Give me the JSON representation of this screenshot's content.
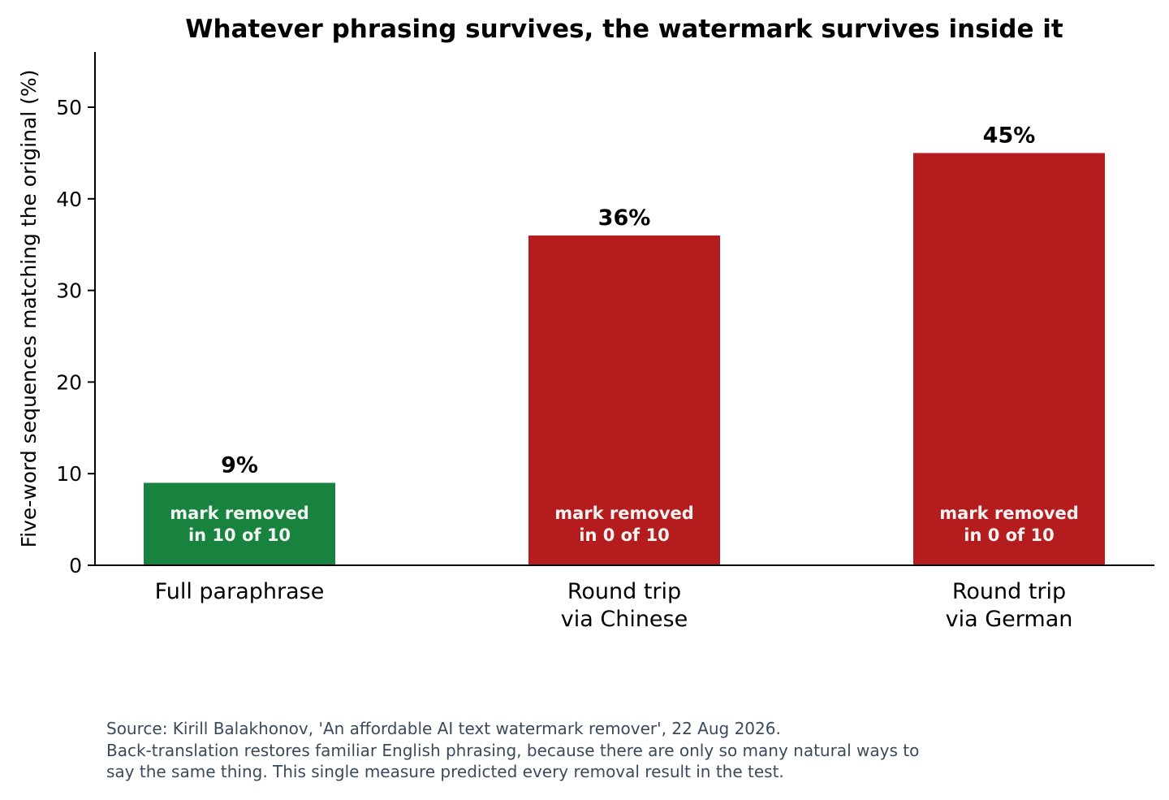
{
  "chart_data": {
    "type": "bar",
    "title": "Whatever phrasing survives, the watermark survives inside it",
    "xlabel": "",
    "ylabel": "Five-word sequences matching the original (%)",
    "ylim": [
      0,
      56
    ],
    "yticks": [
      0,
      10,
      20,
      30,
      40,
      50
    ],
    "grid": false,
    "categories": [
      [
        "Full paraphrase"
      ],
      [
        "Round trip",
        "via Chinese"
      ],
      [
        "Round trip",
        "via German"
      ]
    ],
    "values": [
      9,
      36,
      45
    ],
    "value_labels": [
      "9%",
      "36%",
      "45%"
    ],
    "bar_annotations": [
      [
        "mark removed",
        "in 10 of 10"
      ],
      [
        "mark removed",
        "in 0 of 10"
      ],
      [
        "mark removed",
        "in 0 of 10"
      ]
    ],
    "colors": [
      "#17833f",
      "#b51c1e",
      "#b51c1e"
    ],
    "annotation_color": "#f3f3f3"
  },
  "footnote": {
    "source": "Source: Kirill Balakhonov, 'An affordable AI text watermark remover', 22 Aug 2026.",
    "line2": "Back-translation restores familiar English phrasing, because there are only so many natural ways to",
    "line3": "say the same thing. This single measure predicted every removal result in the test."
  }
}
